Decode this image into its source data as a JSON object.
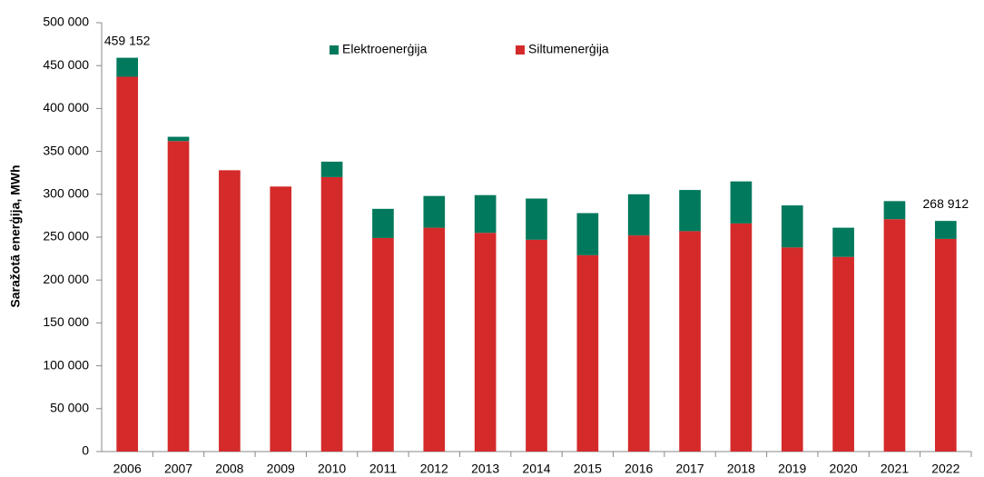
{
  "chart_data": {
    "type": "stacked_bar",
    "y_label": "Saražotā enerģija, MWh",
    "categories": [
      "2006",
      "2007",
      "2008",
      "2009",
      "2010",
      "2011",
      "2012",
      "2013",
      "2014",
      "2015",
      "2016",
      "2017",
      "2018",
      "2019",
      "2020",
      "2021",
      "2022"
    ],
    "series": [
      {
        "name": "Siltumenerģija",
        "color": "#d42a2a",
        "values": [
          437000,
          362000,
          328000,
          309000,
          320000,
          249000,
          261000,
          255000,
          247000,
          229000,
          252000,
          257000,
          266000,
          238000,
          227000,
          271000,
          248000
        ]
      },
      {
        "name": "Elektroenerģija",
        "color": "#00795c",
        "values": [
          22152,
          5000,
          0,
          0,
          18000,
          34000,
          37000,
          44000,
          48000,
          49000,
          48000,
          48000,
          49000,
          49000,
          34000,
          21000,
          20912
        ]
      }
    ],
    "total_labels": [
      {
        "category": "2006",
        "value": 459152,
        "label": "459 152"
      },
      {
        "category": "2022",
        "value": 268912,
        "label": "268 912"
      }
    ],
    "ylim": [
      0,
      500000
    ],
    "yticks": [
      0,
      {
        "value": 50000,
        "label": "50 000"
      },
      {
        "value": 100000,
        "label": "100 000"
      },
      {
        "value": 150000,
        "label": "150 000"
      },
      {
        "value": 200000,
        "label": "200 000"
      },
      {
        "value": 250000,
        "label": "250 000"
      },
      {
        "value": 300000,
        "label": "300 000"
      },
      {
        "value": 350000,
        "label": "350 000"
      },
      {
        "value": 400000,
        "label": "400 000"
      },
      {
        "value": 450000,
        "label": "450 000"
      },
      {
        "value": 500000,
        "label": "500 000"
      }
    ],
    "grid": false
  }
}
